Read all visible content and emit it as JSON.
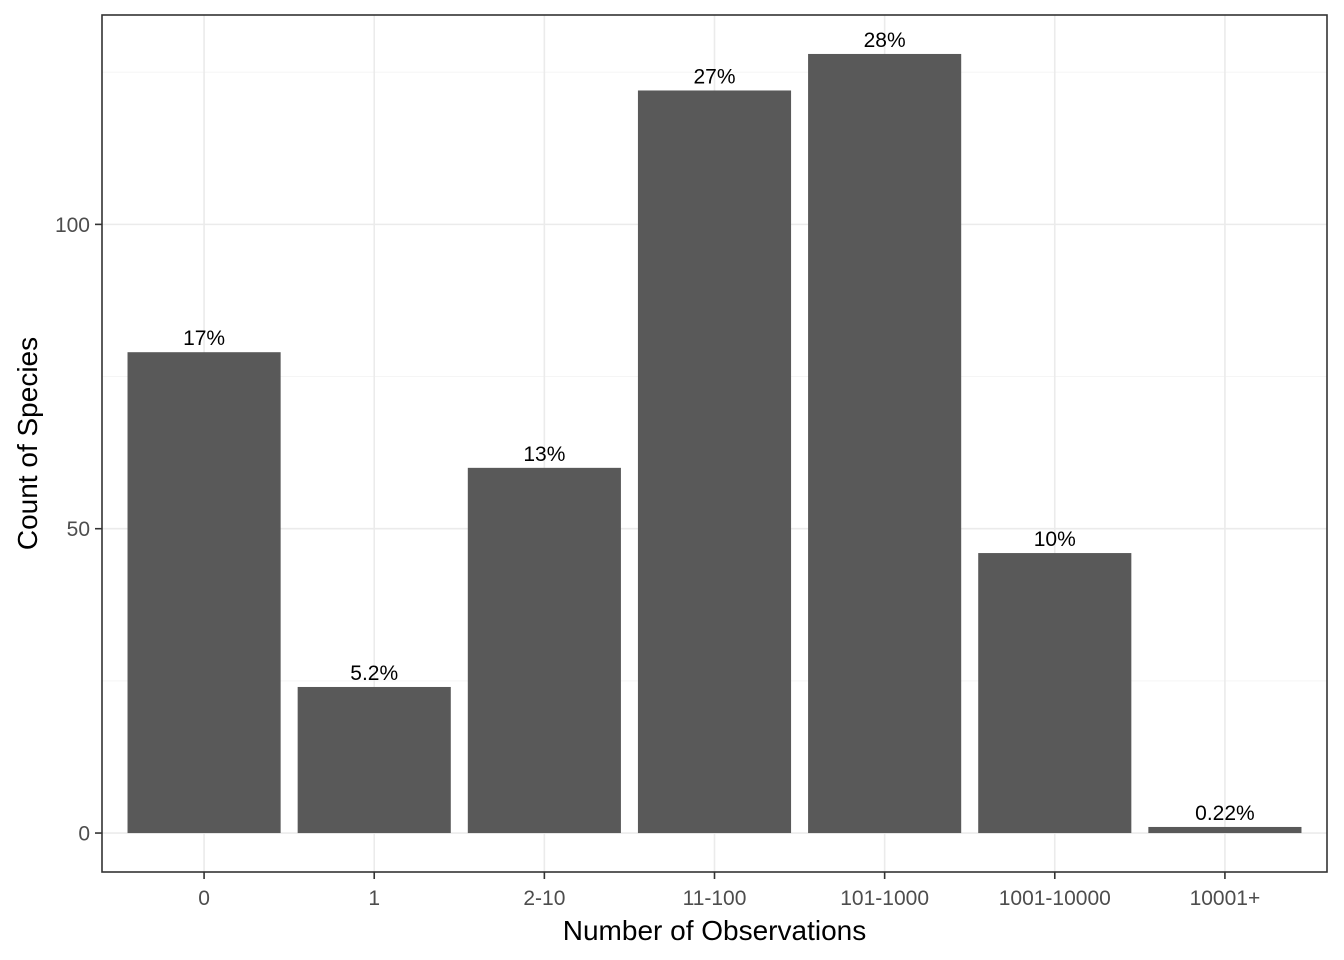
{
  "chart_data": {
    "type": "bar",
    "title": "",
    "xlabel": "Number of Observations",
    "ylabel": "Count of Species",
    "categories": [
      "0",
      "1",
      "2-10",
      "11-100",
      "101-1000",
      "1001-10000",
      "10001+"
    ],
    "values": [
      79,
      24,
      60,
      122,
      128,
      46,
      1
    ],
    "labels": [
      "17%",
      "5.2%",
      "13%",
      "27%",
      "28%",
      "10%",
      "0.22%"
    ],
    "ylim": [
      -6.4,
      134.4
    ],
    "yticks": [
      0,
      50,
      100
    ],
    "ytick_labels": [
      "0",
      "50",
      "100"
    ],
    "grid": true,
    "legend": "none",
    "colors": {
      "bar": "#595959",
      "panel_border": "#333333",
      "grid_major": "#ebebeb",
      "grid_minor": "#f5f5f5",
      "tick_text": "#4d4d4d",
      "axis_title": "#000000",
      "data_label": "#000000"
    }
  }
}
